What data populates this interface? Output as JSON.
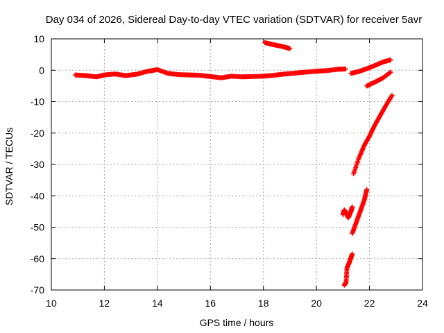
{
  "chart_data": {
    "type": "scatter",
    "title": "Day 034 of 2026, Sidereal Day-to-day VTEC variation (SDTVAR) for receiver 5avr",
    "xlabel": "GPS time / hours",
    "ylabel": "SDTVAR / TECUs",
    "xlim": [
      10,
      24
    ],
    "ylim": [
      -70,
      10
    ],
    "xticks": [
      10,
      12,
      14,
      16,
      18,
      20,
      22,
      24
    ],
    "yticks": [
      10,
      0,
      -10,
      -20,
      -30,
      -40,
      -50,
      -60,
      -70
    ],
    "grid": true,
    "marker": "+",
    "series_color": "#ff0000",
    "series": [
      {
        "name": "main-band",
        "points": [
          [
            10.9,
            -1.5
          ],
          [
            11.3,
            -1.7
          ],
          [
            11.7,
            -2.1
          ],
          [
            12.0,
            -1.5
          ],
          [
            12.4,
            -1.2
          ],
          [
            12.8,
            -1.7
          ],
          [
            13.2,
            -1.3
          ],
          [
            13.6,
            -0.4
          ],
          [
            14.0,
            0.2
          ],
          [
            14.4,
            -1.0
          ],
          [
            14.8,
            -1.4
          ],
          [
            15.2,
            -1.5
          ],
          [
            15.6,
            -1.6
          ],
          [
            16.0,
            -2.0
          ],
          [
            16.4,
            -2.4
          ],
          [
            16.8,
            -1.9
          ],
          [
            17.2,
            -2.1
          ],
          [
            17.6,
            -2.0
          ],
          [
            18.0,
            -1.9
          ],
          [
            18.4,
            -1.6
          ],
          [
            18.8,
            -1.2
          ],
          [
            19.2,
            -0.9
          ],
          [
            19.6,
            -0.6
          ],
          [
            20.0,
            -0.3
          ],
          [
            20.4,
            -0.1
          ],
          [
            20.8,
            0.3
          ],
          [
            21.1,
            0.4
          ]
        ]
      },
      {
        "name": "upper-band-right",
        "points": [
          [
            21.3,
            -1.0
          ],
          [
            21.6,
            -0.4
          ],
          [
            21.9,
            0.5
          ],
          [
            22.2,
            1.5
          ],
          [
            22.5,
            2.6
          ],
          [
            22.8,
            3.3
          ]
        ]
      },
      {
        "name": "segment-near-18h",
        "points": [
          [
            18.05,
            8.8
          ],
          [
            18.4,
            8.1
          ],
          [
            18.7,
            7.6
          ],
          [
            19.0,
            6.9
          ]
        ]
      },
      {
        "name": "upper-recovery-curve",
        "points": [
          [
            21.9,
            -5.0
          ],
          [
            22.2,
            -3.8
          ],
          [
            22.5,
            -2.5
          ],
          [
            22.8,
            -0.6
          ]
        ]
      },
      {
        "name": "steep-recovery-curve",
        "points": [
          [
            21.4,
            -33.0
          ],
          [
            21.6,
            -28.0
          ],
          [
            21.8,
            -24.0
          ],
          [
            22.0,
            -21.0
          ],
          [
            22.2,
            -17.5
          ],
          [
            22.4,
            -14.5
          ],
          [
            22.6,
            -11.5
          ],
          [
            22.85,
            -8.0
          ]
        ]
      },
      {
        "name": "lower-diagonal-curve",
        "points": [
          [
            21.35,
            -52.0
          ],
          [
            21.5,
            -48.5
          ],
          [
            21.65,
            -45.0
          ],
          [
            21.8,
            -41.5
          ],
          [
            21.9,
            -38.0
          ]
        ]
      },
      {
        "name": "cluster-near-21h",
        "points": [
          [
            21.0,
            -46.0
          ],
          [
            21.05,
            -44.5
          ],
          [
            21.12,
            -45.5
          ],
          [
            21.2,
            -47.0
          ],
          [
            21.3,
            -45.0
          ],
          [
            21.35,
            -43.5
          ]
        ]
      },
      {
        "name": "bottom-fragments",
        "points": [
          [
            21.05,
            -68.5
          ],
          [
            21.12,
            -67.5
          ],
          [
            21.15,
            -63.0
          ],
          [
            21.25,
            -61.0
          ],
          [
            21.35,
            -58.5
          ]
        ]
      }
    ]
  }
}
